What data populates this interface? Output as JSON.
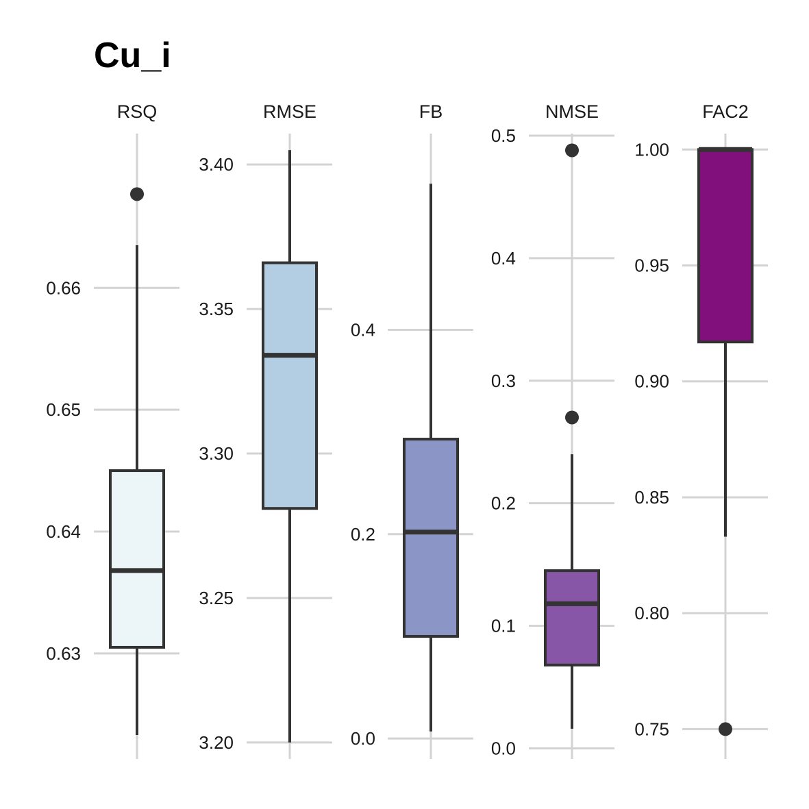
{
  "chart_data": {
    "type": "boxplot",
    "title": "Cu_i",
    "colors": {
      "grid": "#d3d3d3",
      "stroke": "#333333"
    },
    "panels": [
      {
        "label": "RSQ",
        "fill": "#ecf6f9",
        "ylim": [
          0.6215,
          0.6725
        ],
        "ticks": [
          0.63,
          0.64,
          0.65,
          0.66
        ],
        "tick_labels": [
          "0.63",
          "0.64",
          "0.65",
          "0.66"
        ],
        "stats": {
          "min": 0.6233,
          "q1": 0.6305,
          "median": 0.6368,
          "q3": 0.645,
          "max": 0.6635
        },
        "outliers": [
          0.6677
        ]
      },
      {
        "label": "RMSE",
        "fill": "#b3cde3",
        "ylim": [
          3.195,
          3.41
        ],
        "ticks": [
          3.2,
          3.25,
          3.3,
          3.35,
          3.4
        ],
        "tick_labels": [
          "3.20",
          "3.25",
          "3.30",
          "3.35",
          "3.40"
        ],
        "stats": {
          "min": 3.2,
          "q1": 3.281,
          "median": 3.334,
          "q3": 3.366,
          "max": 3.405
        },
        "outliers": []
      },
      {
        "label": "FB",
        "fill": "#8c96c6",
        "ylim": [
          -0.018,
          0.59
        ],
        "ticks": [
          0.0,
          0.2,
          0.4
        ],
        "tick_labels": [
          "0.0",
          "0.2",
          "0.4"
        ],
        "stats": {
          "min": 0.007,
          "q1": 0.1,
          "median": 0.202,
          "q3": 0.293,
          "max": 0.543
        },
        "outliers": []
      },
      {
        "label": "NMSE",
        "fill": "#8856a7",
        "ylim": [
          -0.007,
          0.5
        ],
        "ticks": [
          0.0,
          0.1,
          0.2,
          0.3,
          0.4,
          0.5
        ],
        "tick_labels": [
          "0.0",
          "0.1",
          "0.2",
          "0.3",
          "0.4",
          "0.5"
        ],
        "stats": {
          "min": 0.016,
          "q1": 0.068,
          "median": 0.118,
          "q3": 0.145,
          "max": 0.24
        },
        "outliers": [
          0.27,
          0.488
        ]
      },
      {
        "label": "FAC2",
        "fill": "#810f7c",
        "ylim": [
          0.738,
          1.006
        ],
        "ticks": [
          0.75,
          0.8,
          0.85,
          0.9,
          0.95,
          1.0
        ],
        "tick_labels": [
          "0.75",
          "0.80",
          "0.85",
          "0.90",
          "0.95",
          "1.00"
        ],
        "stats": {
          "min": 0.833,
          "q1": 0.917,
          "median": 1.0,
          "q3": 1.0,
          "max": 1.0
        },
        "outliers": [
          0.75
        ]
      }
    ]
  }
}
